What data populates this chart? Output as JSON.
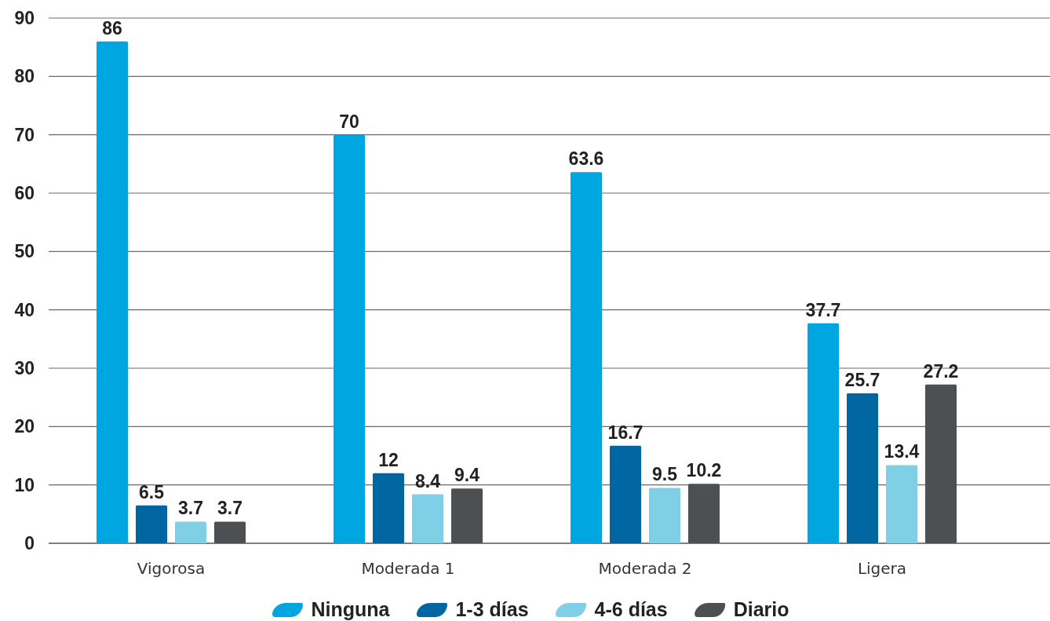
{
  "chart_data": {
    "type": "bar",
    "categories": [
      "Vigorosa",
      "Moderada 1",
      "Moderada 2",
      "Ligera"
    ],
    "series": [
      {
        "name": "Ninguna",
        "color": "#00a6df",
        "values": [
          86,
          70,
          63.6,
          37.7
        ]
      },
      {
        "name": "1-3 días",
        "color": "#0066a1",
        "values": [
          6.5,
          12,
          16.7,
          25.7
        ]
      },
      {
        "name": "4-6 días",
        "color": "#7fd0e6",
        "values": [
          3.7,
          8.4,
          9.5,
          13.4
        ]
      },
      {
        "name": "Diario",
        "color": "#4d5052",
        "values": [
          3.7,
          9.4,
          10.2,
          27.2
        ]
      }
    ],
    "ylim": [
      0,
      90
    ],
    "yticks": [
      0,
      10,
      20,
      30,
      40,
      50,
      60,
      70,
      80,
      90
    ],
    "grid": "y",
    "legend": "bottom",
    "data_labels": true
  }
}
